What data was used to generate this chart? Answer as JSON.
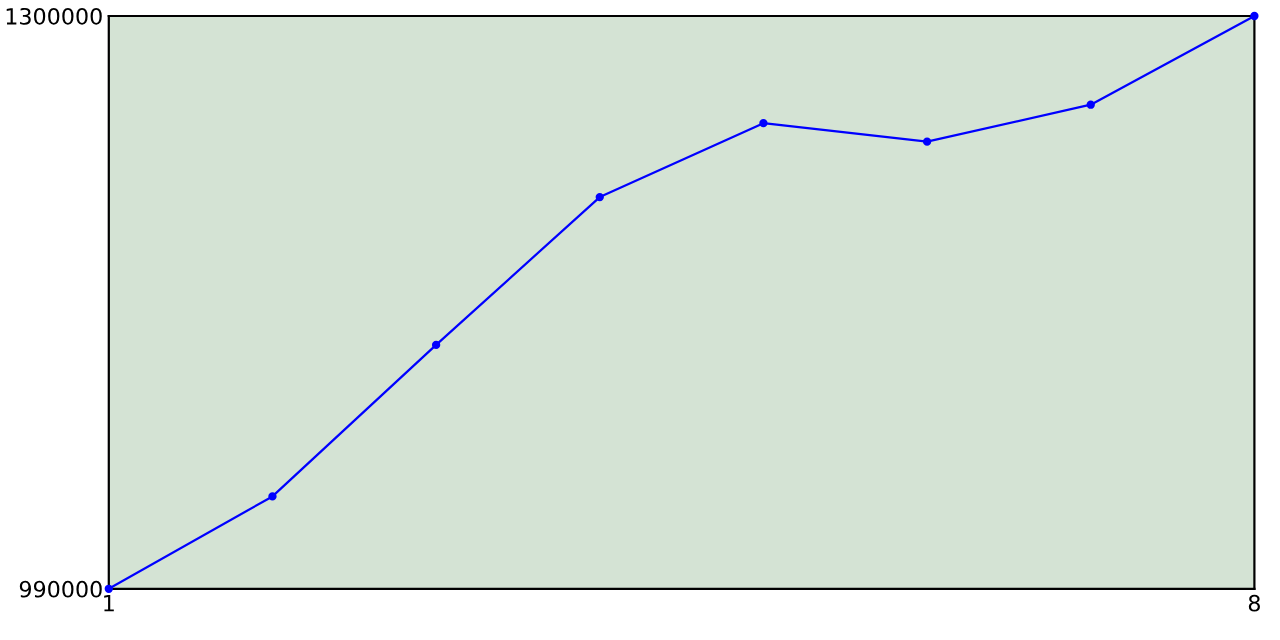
{
  "chart_data": {
    "type": "line",
    "x": [
      1,
      2,
      3,
      4,
      5,
      6,
      7,
      8
    ],
    "series": [
      {
        "color": "#0000ff",
        "values": [
          990000,
          1040000,
          1122000,
          1202000,
          1242000,
          1232000,
          1252000,
          1300000
        ]
      }
    ],
    "xlim": [
      1,
      8
    ],
    "ylim": [
      990000,
      1300000
    ],
    "xticks": [
      1,
      8
    ],
    "yticks": [
      990000,
      1300000
    ],
    "marker": "circle",
    "grid": false,
    "legend": false
  }
}
